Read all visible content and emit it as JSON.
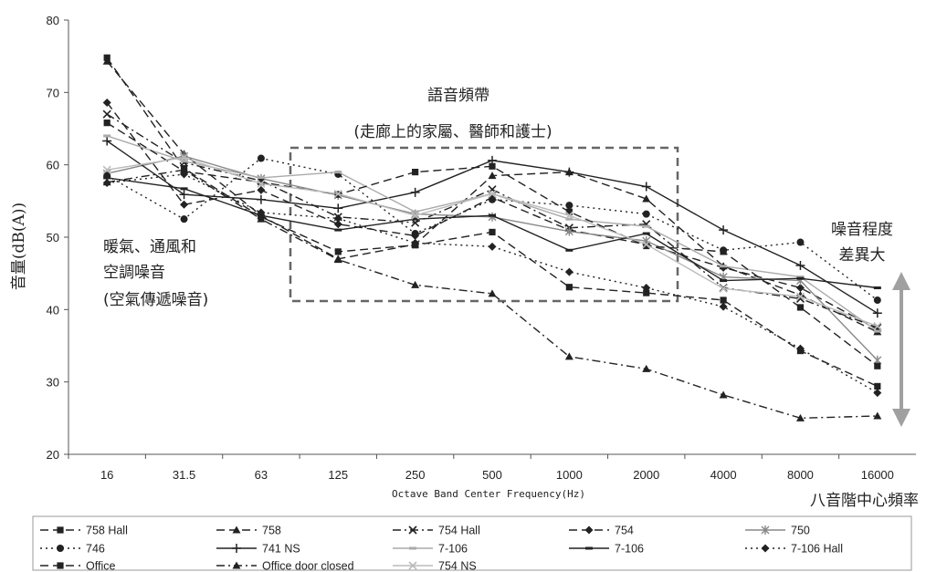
{
  "chart_data": {
    "type": "line",
    "title": "",
    "xlabel": "Octave Band Center Frequency(Hz)",
    "ylabel": "音量(dB(A))",
    "x_secondary_label": "八音階中心頻率",
    "categories": [
      "16",
      "31.5",
      "63",
      "125",
      "250",
      "500",
      "1000",
      "2000",
      "4000",
      "8000",
      "16000"
    ],
    "ylim": [
      20,
      80
    ],
    "yticks": [
      20,
      30,
      40,
      50,
      60,
      70,
      80
    ],
    "grid": false,
    "legend_position": "bottom",
    "series": [
      {
        "name": "758 Hall",
        "marker": "square",
        "dash": "dash",
        "color": "#222222",
        "values": [
          74.8,
          59.5,
          52.8,
          48.0,
          48.9,
          50.7,
          43.1,
          42.3,
          41.3,
          34.3,
          29.4
        ]
      },
      {
        "name": "758",
        "marker": "triangle",
        "dash": "dash",
        "color": "#222222",
        "values": [
          74.3,
          61.5,
          53.0,
          47.0,
          49.0,
          58.5,
          59.0,
          55.3,
          46.0,
          42.0,
          36.9
        ]
      },
      {
        "name": "754 Hall",
        "marker": "x",
        "dash": "dashdot",
        "color": "#222222",
        "values": [
          67.0,
          60.3,
          57.8,
          52.8,
          52.0,
          56.6,
          51.3,
          51.8,
          43.0,
          41.5,
          37.5
        ]
      },
      {
        "name": "754",
        "marker": "diamond",
        "dash": "dash",
        "color": "#222222",
        "values": [
          68.6,
          54.5,
          56.5,
          51.8,
          50.2,
          55.5,
          51.0,
          49.0,
          45.8,
          43.0,
          37.3
        ]
      },
      {
        "name": "750",
        "marker": "asterisk",
        "dash": "solid",
        "color": "#888888",
        "values": [
          58.8,
          61.2,
          58.1,
          55.8,
          53.2,
          52.8,
          50.8,
          49.5,
          44.5,
          44.0,
          33.0
        ]
      },
      {
        "name": "746",
        "marker": "circle",
        "dash": "dot",
        "color": "#222222",
        "values": [
          58.5,
          52.5,
          60.9,
          58.7,
          50.5,
          55.2,
          54.4,
          53.2,
          48.2,
          49.3,
          41.3
        ]
      },
      {
        "name": "741 NS",
        "marker": "plus",
        "dash": "solid",
        "color": "#222222",
        "values": [
          63.3,
          55.9,
          55.2,
          54.0,
          56.2,
          60.6,
          59.0,
          57.0,
          51.0,
          46.1,
          39.5
        ]
      },
      {
        "name": "7-106",
        "marker": "dash",
        "dash": "solid",
        "color": "#aaaaaa",
        "values": [
          64.0,
          60.5,
          58.2,
          59.0,
          53.5,
          56.0,
          52.5,
          51.5,
          46.0,
          44.5,
          37.0
        ]
      },
      {
        "name": "7-106",
        "marker": "dash",
        "dash": "solid",
        "color": "#222222",
        "values": [
          58.2,
          56.7,
          53.0,
          51.0,
          52.5,
          53.0,
          48.2,
          50.5,
          44.0,
          44.3,
          43.0
        ]
      },
      {
        "name": "7-106 Hall",
        "marker": "diamond",
        "dash": "dot",
        "color": "#222222",
        "values": [
          57.5,
          58.7,
          53.4,
          52.6,
          49.2,
          48.7,
          45.2,
          43.0,
          40.4,
          34.6,
          28.5
        ]
      },
      {
        "name": "Office",
        "marker": "square",
        "dash": "dash",
        "color": "#222222",
        "values": [
          65.8,
          59.1,
          57.6,
          55.9,
          59.0,
          59.8,
          53.5,
          48.8,
          48.0,
          40.3,
          32.2
        ]
      },
      {
        "name": "Office door closed",
        "marker": "triangle",
        "dash": "dashdot",
        "color": "#222222",
        "values": [
          57.6,
          59.3,
          52.5,
          46.9,
          43.4,
          42.2,
          33.5,
          31.8,
          28.2,
          25.0,
          25.3
        ]
      },
      {
        "name": "754 NS",
        "marker": "x",
        "dash": "solid",
        "color": "#bbbbbb",
        "values": [
          59.3,
          61.0,
          57.4,
          56.0,
          53.0,
          56.0,
          53.0,
          49.0,
          42.9,
          41.8,
          37.7
        ]
      }
    ],
    "annotations": {
      "speech_band_title": "語音頻帶",
      "speech_band_sub": "(走廊上的家屬、醫師和護士)",
      "hvac_line1": "暖氣、通風和",
      "hvac_line2": "空調噪音",
      "hvac_line3": "(空氣傳遞噪音)",
      "variation_line1": "噪音程度",
      "variation_line2": "差異大"
    }
  }
}
